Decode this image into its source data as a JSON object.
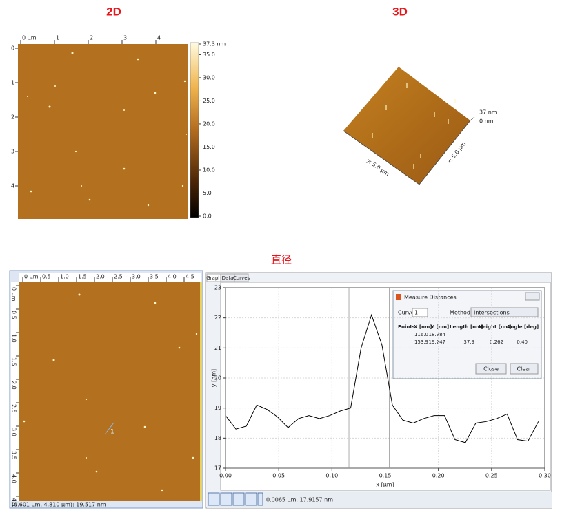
{
  "titles": {
    "image_2d": "2D",
    "image_3d": "3D",
    "diameter": "直径"
  },
  "image_2d": {
    "xticks": [
      {
        "value": 0,
        "label": "0 µm"
      },
      1,
      2,
      3,
      4
    ],
    "yticks": [
      0,
      1,
      2,
      3,
      4
    ],
    "colorbar_ticks": [
      {
        "value": 37.3,
        "label": "37.3 nm"
      },
      {
        "value": 35,
        "label": "35.0"
      },
      {
        "value": 30,
        "label": "30.0"
      },
      {
        "value": 25,
        "label": "25.0"
      },
      {
        "value": 20,
        "label": "20.0"
      },
      {
        "value": 15,
        "label": "15.0"
      },
      {
        "value": 10,
        "label": "10.0"
      },
      {
        "value": 5,
        "label": "5.0"
      },
      {
        "value": 0,
        "label": "0.0"
      }
    ]
  },
  "image_3d": {
    "z_max": "37 nm",
    "z_min": "0 nm",
    "y_label": "y: 5.0 µm",
    "x_label": "x: 5.0 µm"
  },
  "data_window": {
    "ruler_ticks": [
      {
        "value": 0,
        "label": "0 µm"
      },
      {
        "value": 0.5,
        "label": "0.5"
      },
      {
        "value": 1,
        "label": "1.0"
      },
      {
        "value": 1.5,
        "label": "1.5"
      },
      {
        "value": 2,
        "label": "2.0"
      },
      {
        "value": 2.5,
        "label": "2.5"
      },
      {
        "value": 3,
        "label": "3.0"
      },
      {
        "value": 3.5,
        "label": "3.5"
      },
      {
        "value": 4,
        "label": "4.0"
      },
      {
        "value": 4.5,
        "label": "4.5"
      }
    ],
    "profile_label": "1",
    "status": "(0.601 µm, 4.810 µm): 19.517 nm"
  },
  "graph_window": {
    "tabs": [
      "Graph",
      "Data",
      "Curves"
    ],
    "status": "0.0065 µm, 17.9157 nm"
  },
  "dialog": {
    "title": "Measure Distances",
    "curve_label": "Curve:",
    "curve": "1",
    "method_label": "Method:",
    "method": "Intersections",
    "headers": [
      "Points",
      "X [nm]",
      "Y [nm]",
      "Length [nm]",
      "Height [nm]",
      "Angle [deg]"
    ],
    "rows": [
      [
        "116.0",
        "18.984"
      ],
      [
        "153.9",
        "19.247",
        "37.9",
        "0.262",
        "0.40"
      ]
    ],
    "buttons": [
      "Close",
      "Clear"
    ]
  },
  "chart_data": {
    "type": "line",
    "x_label": "x [µm]",
    "y_label": "y [nm]",
    "x": [
      0,
      0.0098,
      0.0196,
      0.0294,
      0.0392,
      0.049,
      0.0588,
      0.0686,
      0.0784,
      0.0882,
      0.098,
      0.1078,
      0.1176,
      0.1274,
      0.1372,
      0.147,
      0.1568,
      0.1666,
      0.1764,
      0.1862,
      0.196,
      0.2058,
      0.2156,
      0.2254,
      0.2352,
      0.245,
      0.2548,
      0.2646,
      0.2744,
      0.2842,
      0.294
    ],
    "series": [
      {
        "color": "#000000",
        "values": [
          18.75,
          18.3,
          18.4,
          19.1,
          18.95,
          18.7,
          18.35,
          18.65,
          18.75,
          18.65,
          18.75,
          18.9,
          19.0,
          21.0,
          22.1,
          21.1,
          19.1,
          18.6,
          18.5,
          18.65,
          18.75,
          18.75,
          17.95,
          17.85,
          18.5,
          18.55,
          18.65,
          18.8,
          17.95,
          17.9,
          18.55
        ]
      }
    ],
    "cursor_x": [
      0.116,
      0.1539
    ],
    "xlim": [
      0,
      0.3
    ],
    "ylim": [
      17,
      23
    ],
    "xticks": [
      {
        "value": 0,
        "label": "0.00"
      },
      {
        "value": 0.05,
        "label": "0.05"
      },
      {
        "value": 0.1,
        "label": "0.10"
      },
      {
        "value": 0.15,
        "label": "0.15"
      },
      {
        "value": 0.2,
        "label": "0.20"
      },
      {
        "value": 0.25,
        "label": "0.25"
      },
      {
        "value": 0.3,
        "label": "0.30"
      }
    ],
    "yticks": [
      17,
      18,
      19,
      20,
      21,
      22,
      23
    ],
    "grid": true
  }
}
